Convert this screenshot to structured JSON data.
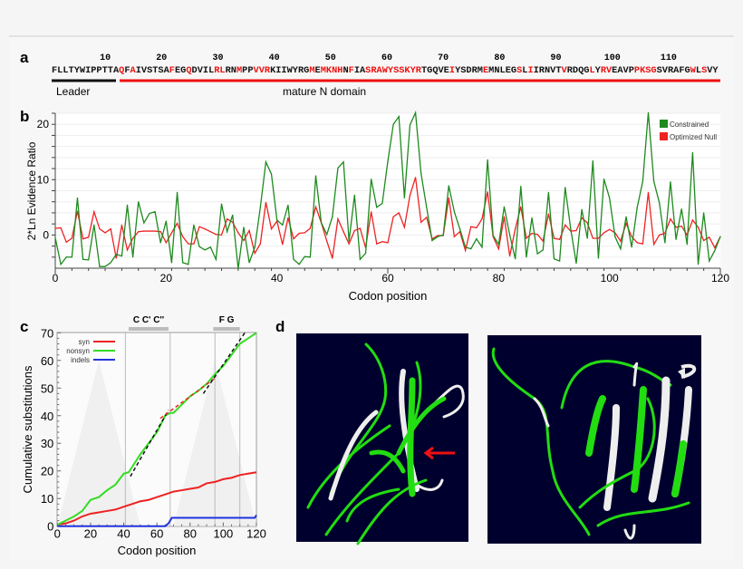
{
  "colors": {
    "constrained": "#1e8a1e",
    "null": "#ee2222",
    "syn": "#ee2222",
    "nonsyn": "#33dd22",
    "indels": "#2233dd",
    "structure_bg": "#00002e",
    "struct_green": "#22dd11",
    "struct_white": "#f0f0f0",
    "arrow": "#ee1111"
  },
  "panel_a": {
    "label": "a",
    "position_numbers": [
      "10",
      "20",
      "30",
      "40",
      "50",
      "60",
      "70",
      "80",
      "90",
      "100",
      "110"
    ],
    "sequence_segments": [
      {
        "t": "FLLTYWIPPTTA",
        "c": "k"
      },
      {
        "t": "Q",
        "c": "r"
      },
      {
        "t": "F",
        "c": "k"
      },
      {
        "t": "A",
        "c": "r"
      },
      {
        "t": "IVSTSA",
        "c": "k"
      },
      {
        "t": "F",
        "c": "r"
      },
      {
        "t": "EG",
        "c": "k"
      },
      {
        "t": "Q",
        "c": "r"
      },
      {
        "t": "DVIL",
        "c": "k"
      },
      {
        "t": "RL",
        "c": "r"
      },
      {
        "t": "RN",
        "c": "k"
      },
      {
        "t": "M",
        "c": "r"
      },
      {
        "t": "PP",
        "c": "k"
      },
      {
        "t": "VVR",
        "c": "r"
      },
      {
        "t": "KIIWYRG",
        "c": "k"
      },
      {
        "t": "M",
        "c": "r"
      },
      {
        "t": "E",
        "c": "k"
      },
      {
        "t": "M",
        "c": "r"
      },
      {
        "t": "KNH",
        "c": "r"
      },
      {
        "t": "N",
        "c": "k"
      },
      {
        "t": "F",
        "c": "r"
      },
      {
        "t": "IA",
        "c": "k"
      },
      {
        "t": "SRAWYSSKYR",
        "c": "r"
      },
      {
        "t": "TGQVE",
        "c": "k"
      },
      {
        "t": "I",
        "c": "r"
      },
      {
        "t": "YSDRM",
        "c": "k"
      },
      {
        "t": "E",
        "c": "r"
      },
      {
        "t": "MNLEG",
        "c": "k"
      },
      {
        "t": "S",
        "c": "r"
      },
      {
        "t": "L",
        "c": "k"
      },
      {
        "t": "I",
        "c": "r"
      },
      {
        "t": "IRNVT",
        "c": "k"
      },
      {
        "t": "V",
        "c": "r"
      },
      {
        "t": "RDQG",
        "c": "k"
      },
      {
        "t": "L",
        "c": "r"
      },
      {
        "t": "Y",
        "c": "k"
      },
      {
        "t": "RV",
        "c": "r"
      },
      {
        "t": "EAVP",
        "c": "k"
      },
      {
        "t": "PKSG",
        "c": "r"
      },
      {
        "t": "SVRAFG",
        "c": "k"
      },
      {
        "t": "W",
        "c": "r"
      },
      {
        "t": "L",
        "c": "k"
      },
      {
        "t": "S",
        "c": "r"
      },
      {
        "t": "VY",
        "c": "k"
      }
    ],
    "leader_label": "Leader",
    "mature_label": "mature N domain"
  },
  "chart_data": [
    {
      "panel": "b",
      "type": "line",
      "xlabel": "Codon position",
      "ylabel": "2*Ln Evidence Ratio",
      "xlim": [
        0,
        120
      ],
      "ylim": [
        -6,
        22
      ],
      "xticks": [
        "0",
        "20",
        "40",
        "60",
        "80",
        "100",
        "120"
      ],
      "yticks": [
        "0",
        "10",
        "20"
      ],
      "grid": true,
      "legend": "top-right",
      "series": [
        {
          "name": "Constrained",
          "color": "#1e8a1e",
          "values": [
            -0.5,
            -5.3,
            -4,
            -4,
            6.7,
            -4.4,
            -4.5,
            1.8,
            -5.7,
            -5.7,
            -5,
            -3.5,
            -3.8,
            5.4,
            -4,
            6,
            2.2,
            3.9,
            4.2,
            -1.4,
            2.5,
            -5,
            7.7,
            -5,
            -5.3,
            1.8,
            -2.1,
            -2.7,
            -2.2,
            -4.4,
            5.6,
            0.6,
            3.6,
            -6.1,
            1.4,
            -5,
            -2.2,
            5,
            13.2,
            11,
            2.7,
            1.8,
            5.4,
            -4.4,
            -5.3,
            -3.9,
            -4,
            10.7,
            2.2,
            0.1,
            3.3,
            12.1,
            13.2,
            -1.1,
            7.2,
            -4.4,
            -3.3,
            10.1,
            5,
            5.7,
            13.3,
            20,
            21.4,
            6.7,
            19.9,
            22.1,
            11.1,
            5,
            -1,
            -0.3,
            0,
            8.9,
            4.2,
            1.1,
            -2.2,
            -2.5,
            -0.7,
            -2.2,
            13.6,
            -0.1,
            -1.7,
            5.1,
            0,
            -4.3,
            8.8,
            -4,
            3.1,
            -3.4,
            -2.7,
            7.7,
            -4.3,
            -4.7,
            8.6,
            1.1,
            -5.1,
            4.6,
            -0.6,
            13.4,
            -4.2,
            10.1,
            6.7,
            -0.3,
            -2.5,
            3.3,
            -2.2,
            5,
            9.7,
            22.1,
            9.7,
            5.8,
            -1.4,
            9.6,
            -0.8,
            4.7,
            -1.7,
            14.9,
            -5.3,
            4,
            -4.7,
            -2.8,
            -0.3
          ]
        },
        {
          "name": "Optimized Null",
          "color": "#ee2222",
          "values": [
            1.2,
            1.3,
            -1.3,
            -0.6,
            4.3,
            -0.7,
            -0.4,
            4.2,
            1.1,
            0.4,
            1.1,
            -4.2,
            1.8,
            -2.7,
            -0.6,
            0.6,
            0.7,
            0.7,
            0.7,
            0.6,
            -1.4,
            0.4,
            2.1,
            -0.3,
            -1.6,
            -1.6,
            1.5,
            1.1,
            0.6,
            0.1,
            0,
            2.9,
            2.3,
            0.4,
            -1,
            0.8,
            -3.3,
            -1.6,
            5.9,
            1.1,
            2.5,
            -1.7,
            3.1,
            -0.7,
            0.3,
            0.4,
            1.2,
            5.1,
            2.2,
            -1.1,
            -4.2,
            2.9,
            0.6,
            -1.6,
            0.8,
            1.2,
            -2.3,
            4.2,
            -1.6,
            -1.2,
            -1.4,
            3.3,
            4,
            1.4,
            7.2,
            10.4,
            2.3,
            3.2,
            -0.7,
            -0.1,
            -0.1,
            6.7,
            -0.3,
            0.6,
            -2.8,
            1.5,
            1.3,
            2.9,
            7.8,
            -0.3,
            -2.5,
            3.3,
            -3.8,
            1.1,
            5.1,
            -0.6,
            0.3,
            0.1,
            -1.1,
            3.8,
            -0.6,
            -0.8,
            1.8,
            0.7,
            0.8,
            3.1,
            2.2,
            -0.6,
            -0.6,
            0.4,
            1,
            0.4,
            -1.1,
            2.1,
            -0.3,
            -1.4,
            -1.6,
            7.7,
            -1.7,
            0,
            0.3,
            2.9,
            1.4,
            1.6,
            0,
            2.7,
            1.4,
            -1,
            -0.4,
            -2.3,
            -0.3
          ]
        }
      ]
    },
    {
      "panel": "c",
      "type": "line",
      "xlabel": "Codon position",
      "ylabel": "Cumulative substitutions",
      "xlim": [
        0,
        120
      ],
      "ylim": [
        0,
        70
      ],
      "xticks": [
        "0",
        "20",
        "40",
        "60",
        "80",
        "100",
        "120"
      ],
      "yticks": [
        "0",
        "10",
        "20",
        "30",
        "40",
        "50",
        "60",
        "70"
      ],
      "legend": "top-left",
      "region_lines": [
        41,
        68,
        95,
        110
      ],
      "region_bars": [
        {
          "label": "C C' C''",
          "from": 43,
          "to": 67
        },
        {
          "label": "F G",
          "from": 94,
          "to": 110
        }
      ],
      "series": [
        {
          "name": "syn",
          "color": "#ee2222",
          "x": [
            0,
            5,
            10,
            15,
            20,
            25,
            30,
            35,
            40,
            45,
            50,
            55,
            60,
            65,
            70,
            75,
            80,
            85,
            90,
            95,
            100,
            105,
            110,
            115,
            120
          ],
          "y": [
            0.5,
            1,
            2,
            3.5,
            4.5,
            5,
            5.5,
            6,
            7,
            8,
            9,
            9.5,
            10.5,
            11.5,
            12.5,
            13,
            13.5,
            14,
            15.5,
            16,
            17,
            17.5,
            18.5,
            19,
            19.5
          ]
        },
        {
          "name": "nonsyn",
          "color": "#33dd22",
          "x": [
            0,
            5,
            10,
            15,
            20,
            25,
            30,
            35,
            40,
            43,
            50,
            55,
            60,
            65,
            68,
            70,
            75,
            80,
            85,
            90,
            95,
            100,
            105,
            110,
            115,
            120
          ],
          "y": [
            0.5,
            2,
            3.5,
            5.5,
            9.5,
            10.5,
            13,
            15,
            19,
            19.5,
            26,
            30,
            34,
            40,
            41,
            41,
            44,
            47,
            49,
            51.5,
            55,
            58,
            62,
            66,
            68,
            70
          ]
        },
        {
          "name": "indels",
          "color": "#2233dd",
          "x": [
            0,
            65,
            67,
            69,
            119,
            120
          ],
          "y": [
            0,
            0,
            1,
            3,
            3,
            4
          ]
        }
      ],
      "fit_lines": [
        {
          "color": "#111111",
          "x": [
            44,
            67
          ],
          "y": [
            18,
            42
          ]
        },
        {
          "color": "#ee2222",
          "x": [
            62,
            96
          ],
          "y": [
            39,
            54
          ]
        },
        {
          "color": "#111111",
          "x": [
            88,
            113
          ],
          "y": [
            48,
            70
          ]
        }
      ]
    }
  ],
  "panel_d": {
    "label": "d"
  }
}
